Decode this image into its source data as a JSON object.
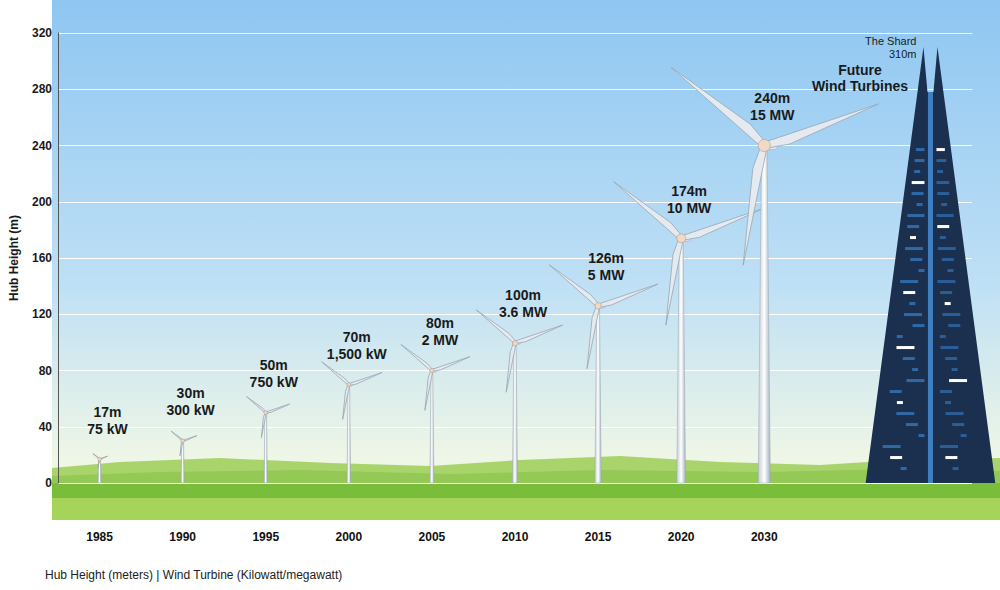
{
  "chart_data": {
    "type": "bar",
    "ylabel": "Hub Height (m)",
    "xlabel": "Hub Height (meters) | Wind Turbine (Kilowatt/megawatt)",
    "annotation": "Future Wind Turbines",
    "categories": [
      "1985",
      "1990",
      "1995",
      "2000",
      "2005",
      "2010",
      "2015",
      "2020",
      "2030",
      null,
      null
    ],
    "values": [
      17,
      30,
      50,
      70,
      80,
      100,
      126,
      174,
      240,
      null,
      null
    ],
    "value_labels": [
      "17m",
      "30m",
      "50m",
      "70m",
      "80m",
      "100m",
      "126m",
      "174m",
      "240m",
      null,
      null
    ],
    "power_labels": [
      "75 kW",
      "300 kW",
      "750 kW",
      "1,500 kW",
      "2 MW",
      "3.6 MW",
      "5 MW",
      "10 MW",
      "15 MW",
      null,
      null
    ],
    "landmark": {
      "label": "The Shard",
      "value": 310,
      "value_label": "310m"
    },
    "ylim": [
      0,
      320
    ],
    "yticks": [
      0,
      40,
      80,
      120,
      160,
      200,
      240,
      280,
      320
    ],
    "grid": true,
    "data_labels": true
  }
}
